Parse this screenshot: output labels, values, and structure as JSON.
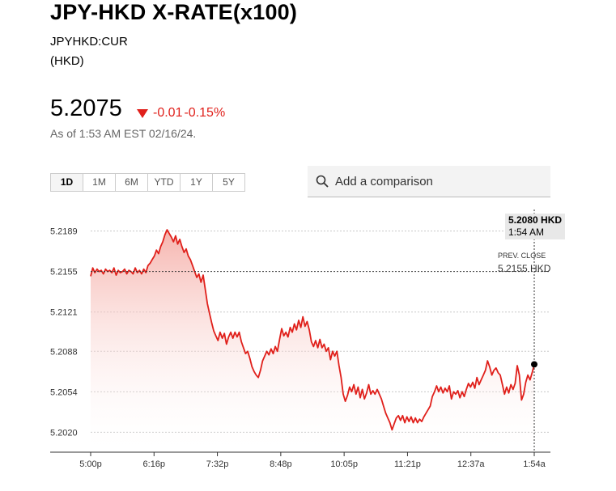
{
  "header": {
    "title": "JPY-HKD X-RATE(x100)",
    "ticker": "JPYHKD:CUR",
    "currency": "(HKD)"
  },
  "quote": {
    "price": "5.2075",
    "change": "-0.01",
    "change_pct": "-0.15%",
    "as_of": "As of 1:53 AM EST 02/16/24."
  },
  "ranges": [
    "1D",
    "1M",
    "6M",
    "YTD",
    "1Y",
    "5Y"
  ],
  "active_range": "1D",
  "compare": {
    "placeholder": "Add a comparison",
    "icon": "search-icon"
  },
  "colors": {
    "line": "#e0201b",
    "down": "#e0201b"
  },
  "tooltip": {
    "value": "5.2080 HKD",
    "time": "1:54 AM"
  },
  "prev_close": {
    "label": "PREV. CLOSE",
    "value": "5.2155 HKD"
  },
  "chart_data": {
    "type": "area",
    "title": "",
    "xlabel": "",
    "ylabel": "",
    "x_ticks": [
      "5:00p",
      "6:16p",
      "7:32p",
      "8:48p",
      "10:05p",
      "11:21p",
      "12:37a",
      "1:54a"
    ],
    "y_ticks": [
      5.2189,
      5.2155,
      5.2121,
      5.2088,
      5.2054,
      5.202
    ],
    "ylim": [
      5.2006,
      5.2203
    ],
    "prev_close": 5.2155,
    "x_unit": "minutes after 5:00p",
    "series": [
      {
        "values": [
          [
            0,
            5.2151
          ],
          [
            2,
            5.2158
          ],
          [
            4,
            5.2154
          ],
          [
            6,
            5.2157
          ],
          [
            8,
            5.2155
          ],
          [
            10,
            5.2156
          ],
          [
            12,
            5.2153
          ],
          [
            14,
            5.2157
          ],
          [
            16,
            5.2155
          ],
          [
            18,
            5.2156
          ],
          [
            20,
            5.2154
          ],
          [
            22,
            5.2158
          ],
          [
            24,
            5.2152
          ],
          [
            26,
            5.2156
          ],
          [
            28,
            5.2154
          ],
          [
            30,
            5.2155
          ],
          [
            32,
            5.2157
          ],
          [
            34,
            5.2153
          ],
          [
            36,
            5.2156
          ],
          [
            38,
            5.2155
          ],
          [
            40,
            5.2153
          ],
          [
            42,
            5.2158
          ],
          [
            44,
            5.2154
          ],
          [
            46,
            5.2156
          ],
          [
            48,
            5.2153
          ],
          [
            50,
            5.2157
          ],
          [
            52,
            5.2154
          ],
          [
            54,
            5.216
          ],
          [
            56,
            5.2162
          ],
          [
            58,
            5.2165
          ],
          [
            60,
            5.2168
          ],
          [
            62,
            5.2173
          ],
          [
            64,
            5.217
          ],
          [
            66,
            5.2176
          ],
          [
            68,
            5.218
          ],
          [
            70,
            5.2186
          ],
          [
            72,
            5.219
          ],
          [
            74,
            5.2187
          ],
          [
            76,
            5.2184
          ],
          [
            78,
            5.218
          ],
          [
            80,
            5.2185
          ],
          [
            82,
            5.2178
          ],
          [
            84,
            5.2182
          ],
          [
            86,
            5.2176
          ],
          [
            88,
            5.2171
          ],
          [
            90,
            5.2174
          ],
          [
            92,
            5.2168
          ],
          [
            94,
            5.2165
          ],
          [
            96,
            5.216
          ],
          [
            98,
            5.2155
          ],
          [
            100,
            5.215
          ],
          [
            102,
            5.2153
          ],
          [
            104,
            5.2146
          ],
          [
            106,
            5.2152
          ],
          [
            108,
            5.214
          ],
          [
            110,
            5.2128
          ],
          [
            112,
            5.212
          ],
          [
            114,
            5.2112
          ],
          [
            116,
            5.2105
          ],
          [
            118,
            5.2101
          ],
          [
            120,
            5.2097
          ],
          [
            122,
            5.2104
          ],
          [
            124,
            5.2099
          ],
          [
            126,
            5.2103
          ],
          [
            128,
            5.2094
          ],
          [
            130,
            5.21
          ],
          [
            132,
            5.2104
          ],
          [
            134,
            5.2099
          ],
          [
            136,
            5.2104
          ],
          [
            138,
            5.21
          ],
          [
            140,
            5.2104
          ],
          [
            142,
            5.2096
          ],
          [
            144,
            5.2091
          ],
          [
            146,
            5.2086
          ],
          [
            148,
            5.2088
          ],
          [
            150,
            5.2082
          ],
          [
            152,
            5.2075
          ],
          [
            154,
            5.2071
          ],
          [
            156,
            5.2068
          ],
          [
            158,
            5.2066
          ],
          [
            160,
            5.2072
          ],
          [
            162,
            5.208
          ],
          [
            164,
            5.2084
          ],
          [
            166,
            5.2088
          ],
          [
            168,
            5.2085
          ],
          [
            170,
            5.209
          ],
          [
            172,
            5.2086
          ],
          [
            174,
            5.2092
          ],
          [
            176,
            5.2088
          ],
          [
            178,
            5.2098
          ],
          [
            180,
            5.2107
          ],
          [
            182,
            5.2101
          ],
          [
            184,
            5.2104
          ],
          [
            186,
            5.21
          ],
          [
            188,
            5.2108
          ],
          [
            190,
            5.2104
          ],
          [
            192,
            5.2111
          ],
          [
            194,
            5.2106
          ],
          [
            196,
            5.2114
          ],
          [
            198,
            5.2108
          ],
          [
            200,
            5.2117
          ],
          [
            202,
            5.2109
          ],
          [
            204,
            5.2113
          ],
          [
            206,
            5.2106
          ],
          [
            208,
            5.2096
          ],
          [
            210,
            5.2092
          ],
          [
            212,
            5.2097
          ],
          [
            214,
            5.2091
          ],
          [
            216,
            5.2098
          ],
          [
            218,
            5.2091
          ],
          [
            220,
            5.2094
          ],
          [
            222,
            5.2088
          ],
          [
            224,
            5.2091
          ],
          [
            226,
            5.2081
          ],
          [
            228,
            5.2088
          ],
          [
            230,
            5.2084
          ],
          [
            232,
            5.2088
          ],
          [
            234,
            5.2076
          ],
          [
            236,
            5.2066
          ],
          [
            238,
            5.2052
          ],
          [
            240,
            5.2046
          ],
          [
            242,
            5.2051
          ],
          [
            244,
            5.2058
          ],
          [
            246,
            5.2054
          ],
          [
            248,
            5.206
          ],
          [
            250,
            5.2052
          ],
          [
            252,
            5.2058
          ],
          [
            254,
            5.2049
          ],
          [
            256,
            5.2056
          ],
          [
            258,
            5.2048
          ],
          [
            260,
            5.2053
          ],
          [
            262,
            5.206
          ],
          [
            264,
            5.2052
          ],
          [
            266,
            5.2055
          ],
          [
            268,
            5.2052
          ],
          [
            270,
            5.2056
          ],
          [
            272,
            5.2052
          ],
          [
            274,
            5.2048
          ],
          [
            276,
            5.2042
          ],
          [
            278,
            5.2036
          ],
          [
            280,
            5.2032
          ],
          [
            282,
            5.2028
          ],
          [
            284,
            5.2022
          ],
          [
            286,
            5.2027
          ],
          [
            288,
            5.2032
          ],
          [
            290,
            5.2034
          ],
          [
            292,
            5.203
          ],
          [
            294,
            5.2034
          ],
          [
            296,
            5.2028
          ],
          [
            298,
            5.2033
          ],
          [
            300,
            5.2029
          ],
          [
            302,
            5.2033
          ],
          [
            304,
            5.2028
          ],
          [
            306,
            5.2032
          ],
          [
            308,
            5.2028
          ],
          [
            310,
            5.2031
          ],
          [
            312,
            5.2029
          ],
          [
            314,
            5.2033
          ],
          [
            316,
            5.2036
          ],
          [
            318,
            5.2039
          ],
          [
            320,
            5.2042
          ],
          [
            322,
            5.205
          ],
          [
            324,
            5.2054
          ],
          [
            326,
            5.2059
          ],
          [
            328,
            5.2054
          ],
          [
            330,
            5.2058
          ],
          [
            332,
            5.2053
          ],
          [
            334,
            5.2057
          ],
          [
            336,
            5.2054
          ],
          [
            338,
            5.2059
          ],
          [
            340,
            5.2048
          ],
          [
            342,
            5.2054
          ],
          [
            344,
            5.2052
          ],
          [
            346,
            5.2055
          ],
          [
            348,
            5.2049
          ],
          [
            350,
            5.2054
          ],
          [
            352,
            5.205
          ],
          [
            354,
            5.2056
          ],
          [
            356,
            5.2061
          ],
          [
            358,
            5.2058
          ],
          [
            360,
            5.2062
          ],
          [
            362,
            5.2057
          ],
          [
            364,
            5.2066
          ],
          [
            366,
            5.206
          ],
          [
            368,
            5.2064
          ],
          [
            370,
            5.2068
          ],
          [
            372,
            5.2072
          ],
          [
            374,
            5.208
          ],
          [
            376,
            5.2075
          ],
          [
            378,
            5.2068
          ],
          [
            380,
            5.2072
          ],
          [
            382,
            5.2074
          ],
          [
            384,
            5.207
          ],
          [
            386,
            5.2068
          ],
          [
            388,
            5.206
          ],
          [
            390,
            5.2052
          ],
          [
            392,
            5.2058
          ],
          [
            394,
            5.2053
          ],
          [
            396,
            5.206
          ],
          [
            398,
            5.2056
          ],
          [
            400,
            5.2061
          ],
          [
            402,
            5.2076
          ],
          [
            404,
            5.2068
          ],
          [
            406,
            5.2047
          ],
          [
            408,
            5.2052
          ],
          [
            410,
            5.2062
          ],
          [
            412,
            5.2068
          ],
          [
            414,
            5.2064
          ],
          [
            416,
            5.207
          ],
          [
            418,
            5.2077
          ]
        ]
      }
    ]
  }
}
